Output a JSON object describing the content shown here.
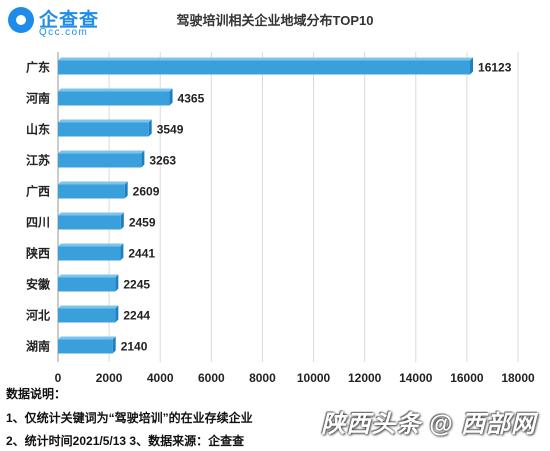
{
  "logo": {
    "name_cn": "企查查",
    "name_en": "Qcc.com",
    "color": "#1f8ceb"
  },
  "chart_data": {
    "type": "bar",
    "orientation": "horizontal",
    "title": "驾驶培训相关企业地域分布TOP10",
    "categories": [
      "广东",
      "河南",
      "山东",
      "江苏",
      "广西",
      "四川",
      "陕西",
      "安徽",
      "河北",
      "湖南"
    ],
    "values": [
      16123,
      4365,
      3549,
      3263,
      2609,
      2459,
      2441,
      2245,
      2244,
      2140
    ],
    "xlim": [
      0,
      18000
    ],
    "xticks": [
      0,
      2000,
      4000,
      6000,
      8000,
      10000,
      12000,
      14000,
      16000,
      18000
    ],
    "grid": "vertical",
    "bar_color": "#3aa0dc"
  },
  "notes": {
    "heading": "数据说明：",
    "line1": "1、仅统计关键词为“驾驶培训”的在业存续企业",
    "line2": "2、统计时间2021/5/13   3、数据来源：企查查"
  },
  "watermark": "陕西头条 @ 西部网"
}
